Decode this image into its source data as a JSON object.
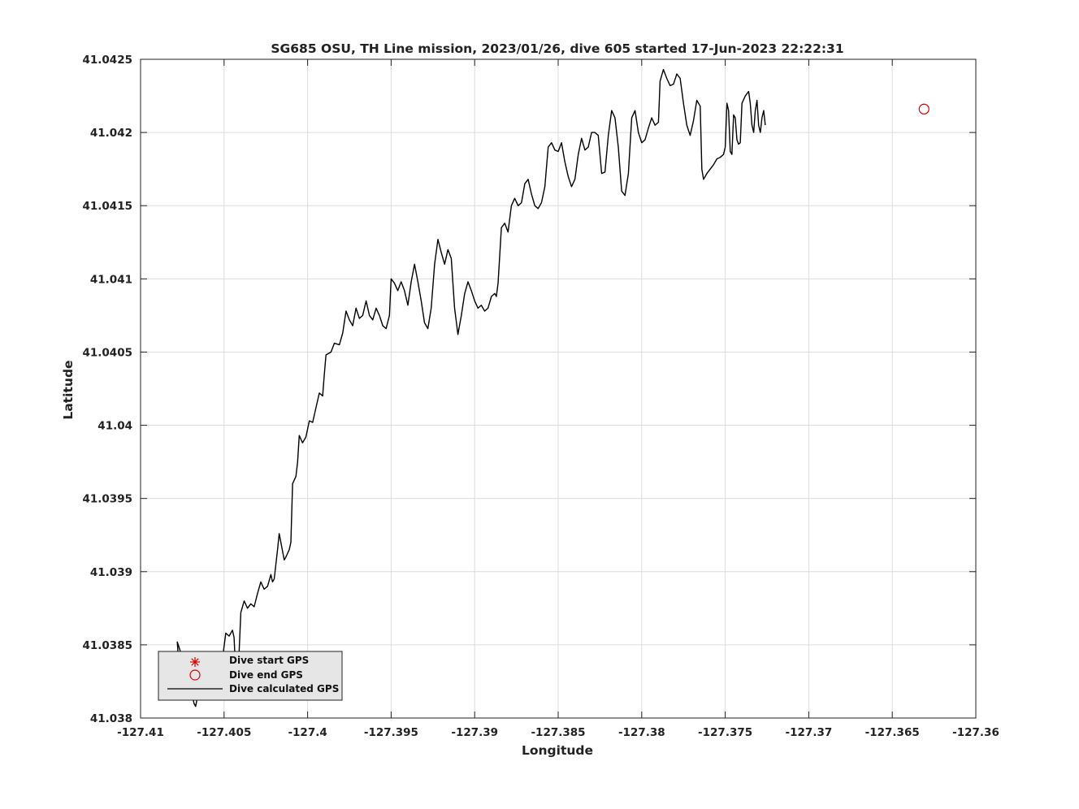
{
  "chart_data": {
    "type": "line",
    "title": "SG685 OSU, TH Line mission, 2023/01/26, dive 605 started 17-Jun-2023 22:22:31",
    "xlabel": "Longitude",
    "ylabel": "Latitude",
    "xlim": [
      -127.41,
      -127.36
    ],
    "ylim": [
      41.038,
      41.0425
    ],
    "xticks": [
      -127.41,
      -127.405,
      -127.4,
      -127.395,
      -127.39,
      -127.385,
      -127.38,
      -127.375,
      -127.37,
      -127.365,
      -127.36
    ],
    "xtick_labels": [
      "-127.41",
      "-127.405",
      "-127.4",
      "-127.395",
      "-127.39",
      "-127.385",
      "-127.38",
      "-127.375",
      "-127.37",
      "-127.365",
      "-127.36"
    ],
    "yticks": [
      41.038,
      41.0385,
      41.039,
      41.0395,
      41.04,
      41.0405,
      41.041,
      41.0415,
      41.042,
      41.0425
    ],
    "ytick_labels": [
      "41.038",
      "41.0385",
      "41.039",
      "41.0395",
      "41.04",
      "41.0405",
      "41.041",
      "41.0415",
      "41.042",
      "41.0425"
    ],
    "grid": true,
    "legend_position": "bottom-left",
    "series": [
      {
        "name": "Dive start GPS",
        "marker": "asterisk",
        "color": "#dd0000",
        "points": [
          [
            -127.4078,
            41.03837
          ],
          [
            -127.4065,
            41.03839
          ]
        ]
      },
      {
        "name": "Dive end GPS",
        "marker": "circle",
        "color": "#dd0000",
        "points": [
          [
            -127.3631,
            41.04216
          ]
        ]
      },
      {
        "name": "Dive calculated GPS",
        "marker": "none",
        "color": "#000000",
        "points": [
          [
            -127.4077,
            41.03835
          ],
          [
            -127.4078,
            41.03852
          ],
          [
            -127.4076,
            41.03845
          ],
          [
            -127.4074,
            41.03825
          ],
          [
            -127.4072,
            41.03832
          ],
          [
            -127.407,
            41.0382
          ],
          [
            -127.4068,
            41.0381
          ],
          [
            -127.4067,
            41.03808
          ],
          [
            -127.4065,
            41.0382
          ],
          [
            -127.4063,
            41.03825
          ],
          [
            -127.4061,
            41.03835
          ],
          [
            -127.4059,
            41.03825
          ],
          [
            -127.4057,
            41.0382
          ],
          [
            -127.4055,
            41.0383
          ],
          [
            -127.4053,
            41.03842
          ],
          [
            -127.4051,
            41.0384
          ],
          [
            -127.4049,
            41.03858
          ],
          [
            -127.4047,
            41.03856
          ],
          [
            -127.4045,
            41.0386
          ],
          [
            -127.4044,
            41.03855
          ],
          [
            -127.4043,
            41.0383
          ],
          [
            -127.4042,
            41.03818
          ],
          [
            -127.4041,
            41.03845
          ],
          [
            -127.404,
            41.03872
          ],
          [
            -127.4038,
            41.0388
          ],
          [
            -127.4036,
            41.03875
          ],
          [
            -127.4034,
            41.03878
          ],
          [
            -127.4032,
            41.03876
          ],
          [
            -127.403,
            41.03885
          ],
          [
            -127.4028,
            41.03893
          ],
          [
            -127.4026,
            41.03888
          ],
          [
            -127.4024,
            41.0389
          ],
          [
            -127.4022,
            41.03898
          ],
          [
            -127.4021,
            41.03893
          ],
          [
            -127.402,
            41.03895
          ],
          [
            -127.4018,
            41.03915
          ],
          [
            -127.4017,
            41.03926
          ],
          [
            -127.4016,
            41.0392
          ],
          [
            -127.4014,
            41.03908
          ],
          [
            -127.4013,
            41.0391
          ],
          [
            -127.4011,
            41.03915
          ],
          [
            -127.401,
            41.0392
          ],
          [
            -127.4009,
            41.0396
          ],
          [
            -127.4007,
            41.03965
          ],
          [
            -127.4006,
            41.03975
          ],
          [
            -127.4005,
            41.03993
          ],
          [
            -127.4003,
            41.03988
          ],
          [
            -127.4001,
            41.03992
          ],
          [
            -127.3999,
            41.04003
          ],
          [
            -127.3997,
            41.04002
          ],
          [
            -127.3995,
            41.04012
          ],
          [
            -127.3993,
            41.04022
          ],
          [
            -127.3991,
            41.0402
          ],
          [
            -127.399,
            41.04035
          ],
          [
            -127.3989,
            41.04048
          ],
          [
            -127.3986,
            41.0405
          ],
          [
            -127.3984,
            41.04056
          ],
          [
            -127.3981,
            41.04055
          ],
          [
            -127.3979,
            41.04063
          ],
          [
            -127.3977,
            41.04078
          ],
          [
            -127.3975,
            41.04072
          ],
          [
            -127.3973,
            41.04068
          ],
          [
            -127.3971,
            41.0408
          ],
          [
            -127.3969,
            41.04073
          ],
          [
            -127.3967,
            41.04075
          ],
          [
            -127.3965,
            41.04085
          ],
          [
            -127.3963,
            41.04075
          ],
          [
            -127.3961,
            41.04072
          ],
          [
            -127.3959,
            41.0408
          ],
          [
            -127.3957,
            41.04075
          ],
          [
            -127.3955,
            41.04068
          ],
          [
            -127.3953,
            41.04066
          ],
          [
            -127.3951,
            41.04075
          ],
          [
            -127.395,
            41.041
          ],
          [
            -127.3948,
            41.04097
          ],
          [
            -127.3946,
            41.04092
          ],
          [
            -127.3944,
            41.04098
          ],
          [
            -127.3942,
            41.04092
          ],
          [
            -127.394,
            41.04082
          ],
          [
            -127.3938,
            41.04098
          ],
          [
            -127.3936,
            41.0411
          ],
          [
            -127.3934,
            41.04098
          ],
          [
            -127.3932,
            41.04085
          ],
          [
            -127.393,
            41.0407
          ],
          [
            -127.3928,
            41.04066
          ],
          [
            -127.3926,
            41.0408
          ],
          [
            -127.3924,
            41.0411
          ],
          [
            -127.3922,
            41.04127
          ],
          [
            -127.392,
            41.04118
          ],
          [
            -127.3918,
            41.0411
          ],
          [
            -127.3916,
            41.0412
          ],
          [
            -127.3914,
            41.04114
          ],
          [
            -127.3912,
            41.0408
          ],
          [
            -127.391,
            41.04062
          ],
          [
            -127.3908,
            41.04075
          ],
          [
            -127.3906,
            41.0409
          ],
          [
            -127.3904,
            41.04098
          ],
          [
            -127.3902,
            41.04092
          ],
          [
            -127.39,
            41.04085
          ],
          [
            -127.3898,
            41.0408
          ],
          [
            -127.3896,
            41.04082
          ],
          [
            -127.3894,
            41.04078
          ],
          [
            -127.3892,
            41.0408
          ],
          [
            -127.389,
            41.04088
          ],
          [
            -127.3888,
            41.0409
          ],
          [
            -127.3887,
            41.04088
          ],
          [
            -127.3886,
            41.04097
          ],
          [
            -127.3884,
            41.04135
          ],
          [
            -127.3882,
            41.04138
          ],
          [
            -127.388,
            41.04132
          ],
          [
            -127.3878,
            41.0415
          ],
          [
            -127.3876,
            41.04155
          ],
          [
            -127.3874,
            41.0415
          ],
          [
            -127.3872,
            41.04152
          ],
          [
            -127.387,
            41.04165
          ],
          [
            -127.3868,
            41.04168
          ],
          [
            -127.3866,
            41.04158
          ],
          [
            -127.3864,
            41.0415
          ],
          [
            -127.3862,
            41.04148
          ],
          [
            -127.386,
            41.04152
          ],
          [
            -127.3858,
            41.04163
          ],
          [
            -127.3856,
            41.0419
          ],
          [
            -127.3854,
            41.04193
          ],
          [
            -127.3852,
            41.04188
          ],
          [
            -127.385,
            41.04187
          ],
          [
            -127.3848,
            41.04193
          ],
          [
            -127.3846,
            41.0418
          ],
          [
            -127.3844,
            41.0417
          ],
          [
            -127.3842,
            41.04163
          ],
          [
            -127.384,
            41.04168
          ],
          [
            -127.3838,
            41.04185
          ],
          [
            -127.3836,
            41.04196
          ],
          [
            -127.3834,
            41.04188
          ],
          [
            -127.3832,
            41.0419
          ],
          [
            -127.383,
            41.042
          ],
          [
            -127.3828,
            41.042
          ],
          [
            -127.3826,
            41.04198
          ],
          [
            -127.3824,
            41.04172
          ],
          [
            -127.3822,
            41.04173
          ],
          [
            -127.382,
            41.04198
          ],
          [
            -127.3818,
            41.04215
          ],
          [
            -127.3816,
            41.0421
          ],
          [
            -127.3814,
            41.0419
          ],
          [
            -127.3812,
            41.0416
          ],
          [
            -127.381,
            41.04157
          ],
          [
            -127.3808,
            41.04172
          ],
          [
            -127.3806,
            41.0421
          ],
          [
            -127.3804,
            41.04215
          ],
          [
            -127.3802,
            41.042
          ],
          [
            -127.38,
            41.04193
          ],
          [
            -127.3798,
            41.04195
          ],
          [
            -127.3796,
            41.04203
          ],
          [
            -127.3794,
            41.0421
          ],
          [
            -127.3792,
            41.04205
          ],
          [
            -127.379,
            41.04207
          ],
          [
            -127.3789,
            41.04235
          ],
          [
            -127.3787,
            41.04243
          ],
          [
            -127.3785,
            41.04237
          ],
          [
            -127.3783,
            41.04232
          ],
          [
            -127.3781,
            41.04233
          ],
          [
            -127.3779,
            41.0424
          ],
          [
            -127.3777,
            41.04237
          ],
          [
            -127.3775,
            41.0422
          ],
          [
            -127.3773,
            41.04205
          ],
          [
            -127.3771,
            41.04198
          ],
          [
            -127.3769,
            41.04208
          ],
          [
            -127.3767,
            41.04222
          ],
          [
            -127.3765,
            41.04218
          ],
          [
            -127.3764,
            41.04175
          ],
          [
            -127.3763,
            41.04168
          ],
          [
            -127.3761,
            41.04172
          ],
          [
            -127.3759,
            41.04175
          ],
          [
            -127.3757,
            41.04178
          ],
          [
            -127.3755,
            41.04182
          ],
          [
            -127.3753,
            41.04183
          ],
          [
            -127.3751,
            41.04185
          ],
          [
            -127.375,
            41.0419
          ],
          [
            -127.3749,
            41.0422
          ],
          [
            -127.3748,
            41.04215
          ],
          [
            -127.3747,
            41.04187
          ],
          [
            -127.3746,
            41.04185
          ],
          [
            -127.3745,
            41.04212
          ],
          [
            -127.3744,
            41.0421
          ],
          [
            -127.3743,
            41.04195
          ],
          [
            -127.3742,
            41.04192
          ],
          [
            -127.3741,
            41.04193
          ],
          [
            -127.374,
            41.0422
          ],
          [
            -127.3738,
            41.04225
          ],
          [
            -127.3736,
            41.04228
          ],
          [
            -127.3735,
            41.0422
          ],
          [
            -127.3734,
            41.04205
          ],
          [
            -127.3733,
            41.042
          ],
          [
            -127.3732,
            41.04215
          ],
          [
            -127.3731,
            41.04222
          ],
          [
            -127.373,
            41.04205
          ],
          [
            -127.3729,
            41.042
          ],
          [
            -127.3728,
            41.0421
          ],
          [
            -127.3727,
            41.04215
          ],
          [
            -127.3726,
            41.04205
          ]
        ]
      }
    ]
  }
}
